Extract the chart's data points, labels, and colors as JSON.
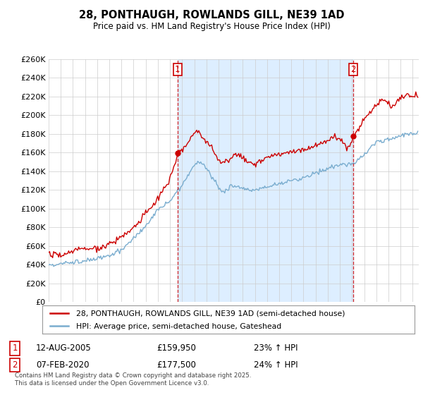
{
  "title": "28, PONTHAUGH, ROWLANDS GILL, NE39 1AD",
  "subtitle": "Price paid vs. HM Land Registry's House Price Index (HPI)",
  "legend_line1": "28, PONTHAUGH, ROWLANDS GILL, NE39 1AD (semi-detached house)",
  "legend_line2": "HPI: Average price, semi-detached house, Gateshead",
  "annotation1_label": "1",
  "annotation1_date": "12-AUG-2005",
  "annotation1_price": "£159,950",
  "annotation1_hpi": "23% ↑ HPI",
  "annotation2_label": "2",
  "annotation2_date": "07-FEB-2020",
  "annotation2_price": "£177,500",
  "annotation2_hpi": "24% ↑ HPI",
  "footer": "Contains HM Land Registry data © Crown copyright and database right 2025.\nThis data is licensed under the Open Government Licence v3.0.",
  "vline1_x": 2005.62,
  "vline2_x": 2020.08,
  "vline1_y": 159950,
  "vline2_y": 177500,
  "ylim": [
    0,
    260000
  ],
  "xlim_start": 1995.0,
  "xlim_end": 2025.5,
  "background_color": "#ffffff",
  "grid_color": "#cccccc",
  "red_color": "#cc0000",
  "blue_color": "#7aadcf",
  "shade_color": "#ddeeff"
}
